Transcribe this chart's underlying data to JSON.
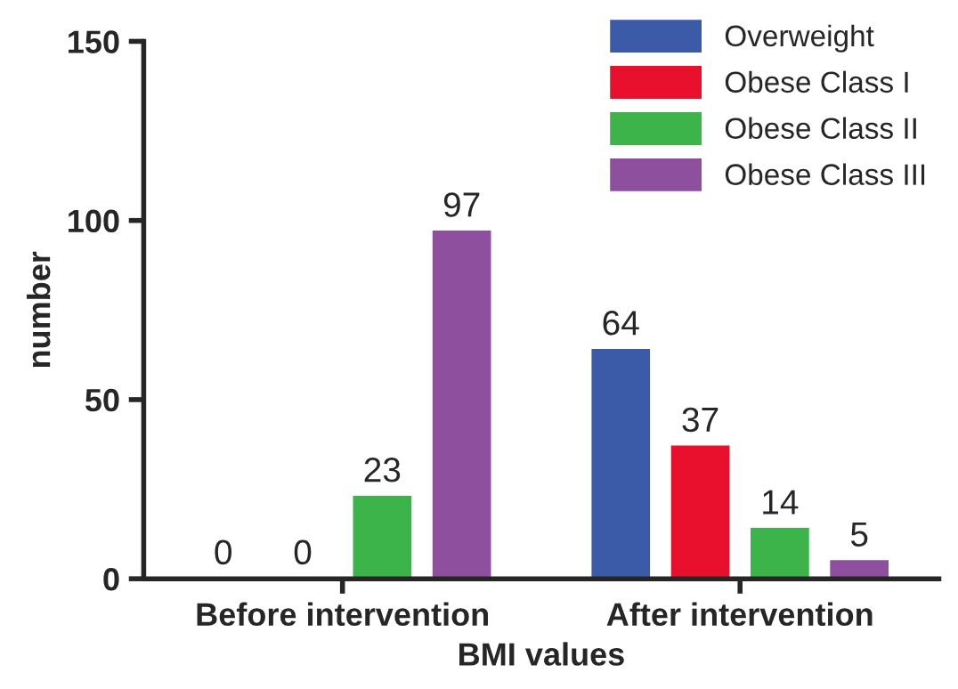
{
  "chart_data": {
    "type": "bar",
    "xlabel": "BMI values",
    "ylabel": "number",
    "categories": [
      "Before intervention",
      "After intervention"
    ],
    "series": [
      {
        "name": "Overweight",
        "color": "#3b5aa8",
        "values": [
          0,
          64
        ]
      },
      {
        "name": "Obese Class I",
        "color": "#e8102c",
        "values": [
          0,
          37
        ]
      },
      {
        "name": "Obese Class II",
        "color": "#3cb44a",
        "values": [
          23,
          14
        ]
      },
      {
        "name": "Obese Class III",
        "color": "#8e4f9f",
        "values": [
          97,
          5
        ]
      }
    ],
    "ylim": [
      0,
      150
    ],
    "yticks": [
      0,
      50,
      100,
      150
    ],
    "data_labels": true,
    "legend": "top right",
    "grid": false
  }
}
